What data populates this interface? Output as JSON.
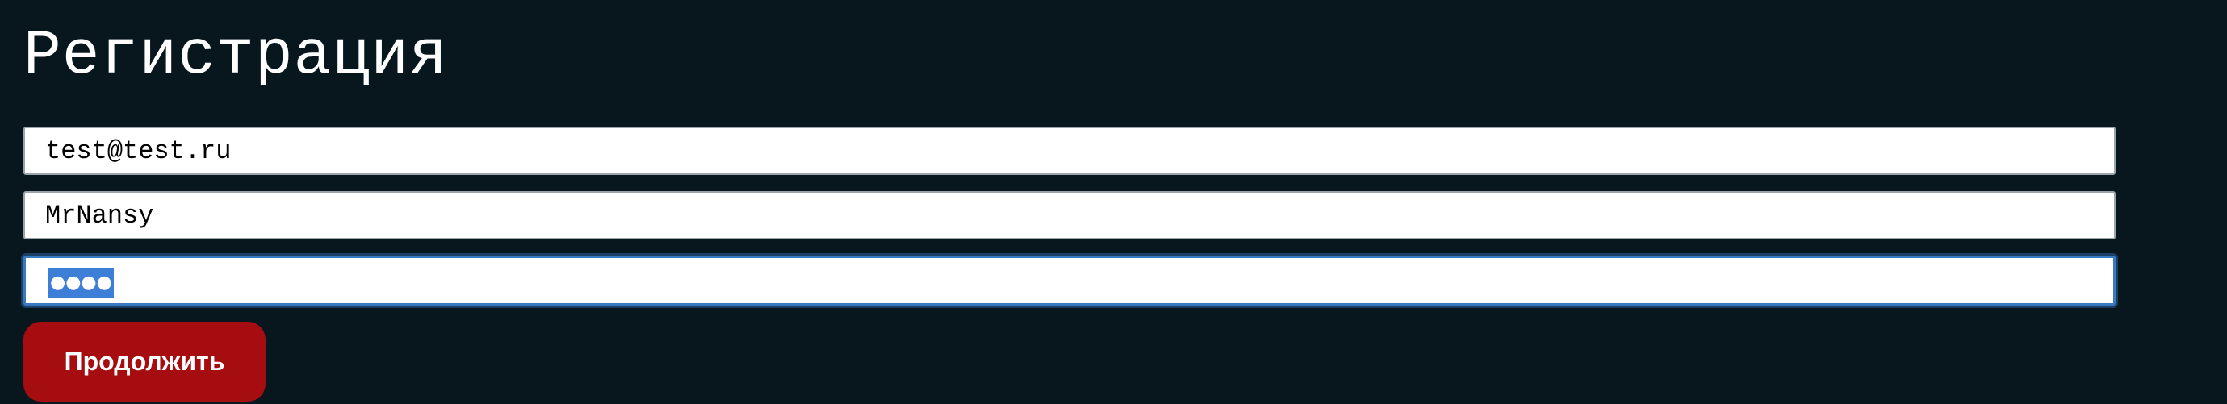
{
  "form": {
    "title": "Регистрация",
    "email": {
      "value": "test@test.ru"
    },
    "username": {
      "value": "MrNansy"
    },
    "password": {
      "mask": "●●●●",
      "selected": true
    },
    "submit_label": "Продолжить"
  },
  "colors": {
    "background": "#08161d",
    "accent_focus": "#3b78c2",
    "selection": "#3d7fd6",
    "button": "#a50d11"
  }
}
